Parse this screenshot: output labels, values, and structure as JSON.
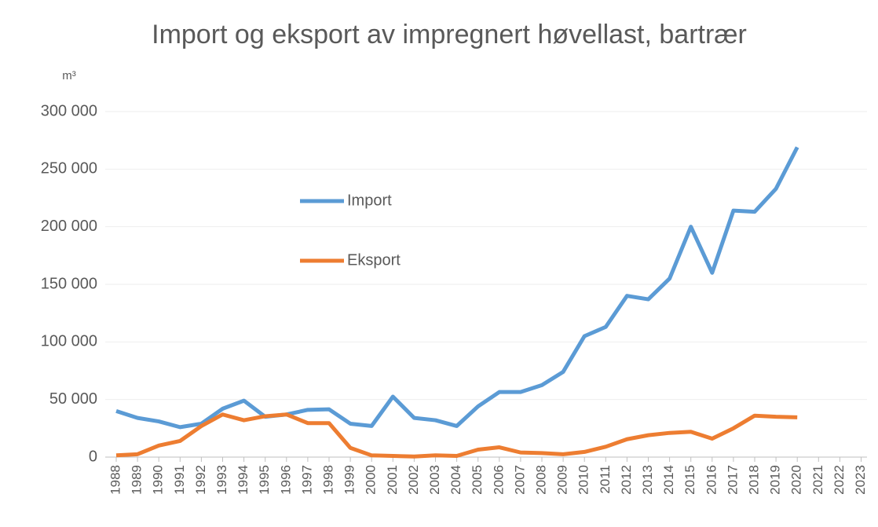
{
  "chart_data": {
    "type": "line",
    "title": "Import og eksport av impregnert høvellast, bartrær",
    "y_label": "m³",
    "categories": [
      "1988",
      "1989",
      "1990",
      "1991",
      "1992",
      "1993",
      "1994",
      "1995",
      "1996",
      "1997",
      "1998",
      "1999",
      "2000",
      "2001",
      "2002",
      "2003",
      "2004",
      "2005",
      "2006",
      "2007",
      "2008",
      "2009",
      "2010",
      "2011",
      "2012",
      "2013",
      "2014",
      "2015",
      "2016",
      "2017",
      "2018",
      "2019",
      "2020",
      "2021",
      "2022",
      "2023"
    ],
    "series": [
      {
        "name": "Import",
        "color": "#5b9bd5",
        "values": [
          40000,
          34000,
          31000,
          26000,
          29000,
          42000,
          49000,
          35000,
          37000,
          41000,
          41500,
          29000,
          27000,
          52500,
          34000,
          32000,
          27000,
          44000,
          56500,
          56500,
          62500,
          74000,
          105000,
          113000,
          140000,
          137000,
          155000,
          200000,
          160000,
          214000,
          213000,
          233000,
          269000,
          null,
          null,
          null
        ]
      },
      {
        "name": "Eksport",
        "color": "#ed7d31",
        "values": [
          1500,
          2500,
          10000,
          14000,
          27000,
          37000,
          32000,
          35500,
          37000,
          29500,
          29500,
          8000,
          1500,
          1000,
          500,
          1500,
          1000,
          6500,
          8500,
          4000,
          3500,
          2500,
          4500,
          9000,
          15500,
          19000,
          21000,
          22000,
          16000,
          25000,
          36000,
          35000,
          34500,
          null,
          null,
          null
        ]
      }
    ],
    "ylim": [
      0,
      300000
    ],
    "yticks": [
      0,
      {
        "value": 50000,
        "label": "50 000"
      },
      {
        "value": 100000,
        "label": "100 000"
      },
      {
        "value": 150000,
        "label": "150 000"
      },
      {
        "value": 200000,
        "label": "200 000"
      },
      {
        "value": 250000,
        "label": "250 000"
      },
      {
        "value": 300000,
        "label": "300 000"
      }
    ],
    "grid": true,
    "legend": "inside-center"
  }
}
